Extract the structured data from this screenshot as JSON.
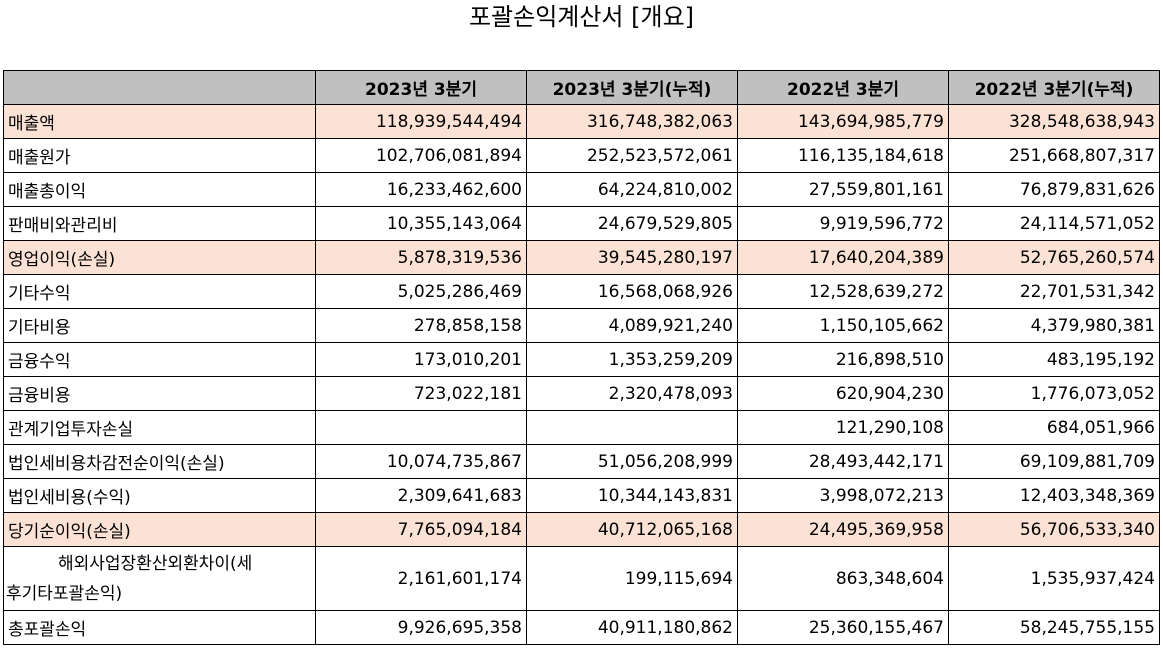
{
  "title": "포괄손익계산서 [개요]",
  "headers": [
    "",
    "2023년 3분기",
    "2023년 3분기(누적)",
    "2022년 3분기",
    "2022년 3분기(누적)"
  ],
  "rows": [
    {
      "label": "매출액",
      "values": [
        "118,939,544,494",
        "316,748,382,063",
        "143,694,985,779",
        "328,548,638,943"
      ],
      "highlight": true
    },
    {
      "label": "매출원가",
      "values": [
        "102,706,081,894",
        "252,523,572,061",
        "116,135,184,618",
        "251,668,807,317"
      ],
      "highlight": false
    },
    {
      "label": "매출총이익",
      "values": [
        "16,233,462,600",
        "64,224,810,002",
        "27,559,801,161",
        "76,879,831,626"
      ],
      "highlight": false
    },
    {
      "label": "판매비와관리비",
      "values": [
        "10,355,143,064",
        "24,679,529,805",
        "9,919,596,772",
        "24,114,571,052"
      ],
      "highlight": false
    },
    {
      "label": "영업이익(손실)",
      "values": [
        "5,878,319,536",
        "39,545,280,197",
        "17,640,204,389",
        "52,765,260,574"
      ],
      "highlight": true
    },
    {
      "label": "기타수익",
      "values": [
        "5,025,286,469",
        "16,568,068,926",
        "12,528,639,272",
        "22,701,531,342"
      ],
      "highlight": false
    },
    {
      "label": "기타비용",
      "values": [
        "278,858,158",
        "4,089,921,240",
        "1,150,105,662",
        "4,379,980,381"
      ],
      "highlight": false
    },
    {
      "label": "금융수익",
      "values": [
        "173,010,201",
        "1,353,259,209",
        "216,898,510",
        "483,195,192"
      ],
      "highlight": false
    },
    {
      "label": "금융비용",
      "values": [
        "723,022,181",
        "2,320,478,093",
        "620,904,230",
        "1,776,073,052"
      ],
      "highlight": false
    },
    {
      "label": "관계기업투자손실",
      "values": [
        "",
        "",
        "121,290,108",
        "684,051,966"
      ],
      "highlight": false
    },
    {
      "label": "법인세비용차감전순이익(손실)",
      "values": [
        "10,074,735,867",
        "51,056,208,999",
        "28,493,442,171",
        "69,109,881,709"
      ],
      "highlight": false
    },
    {
      "label": "법인세비용(수익)",
      "values": [
        "2,309,641,683",
        "10,344,143,831",
        "3,998,072,213",
        "12,403,348,369"
      ],
      "highlight": false
    },
    {
      "label": "당기순이익(손실)",
      "values": [
        "7,765,094,184",
        "40,712,065,168",
        "24,495,369,958",
        "56,706,533,340"
      ],
      "highlight": true
    },
    {
      "label_line1": "해외사업장환산외환차이(세",
      "label_line2": "후기타포괄손익)",
      "values": [
        "2,161,601,174",
        "199,115,694",
        "863,348,604",
        "1,535,937,424"
      ],
      "highlight": false
    },
    {
      "label": "총포괄손익",
      "values": [
        "9,926,695,358",
        "40,911,180,862",
        "25,360,155,467",
        "58,245,755,155"
      ],
      "highlight": false
    }
  ]
}
